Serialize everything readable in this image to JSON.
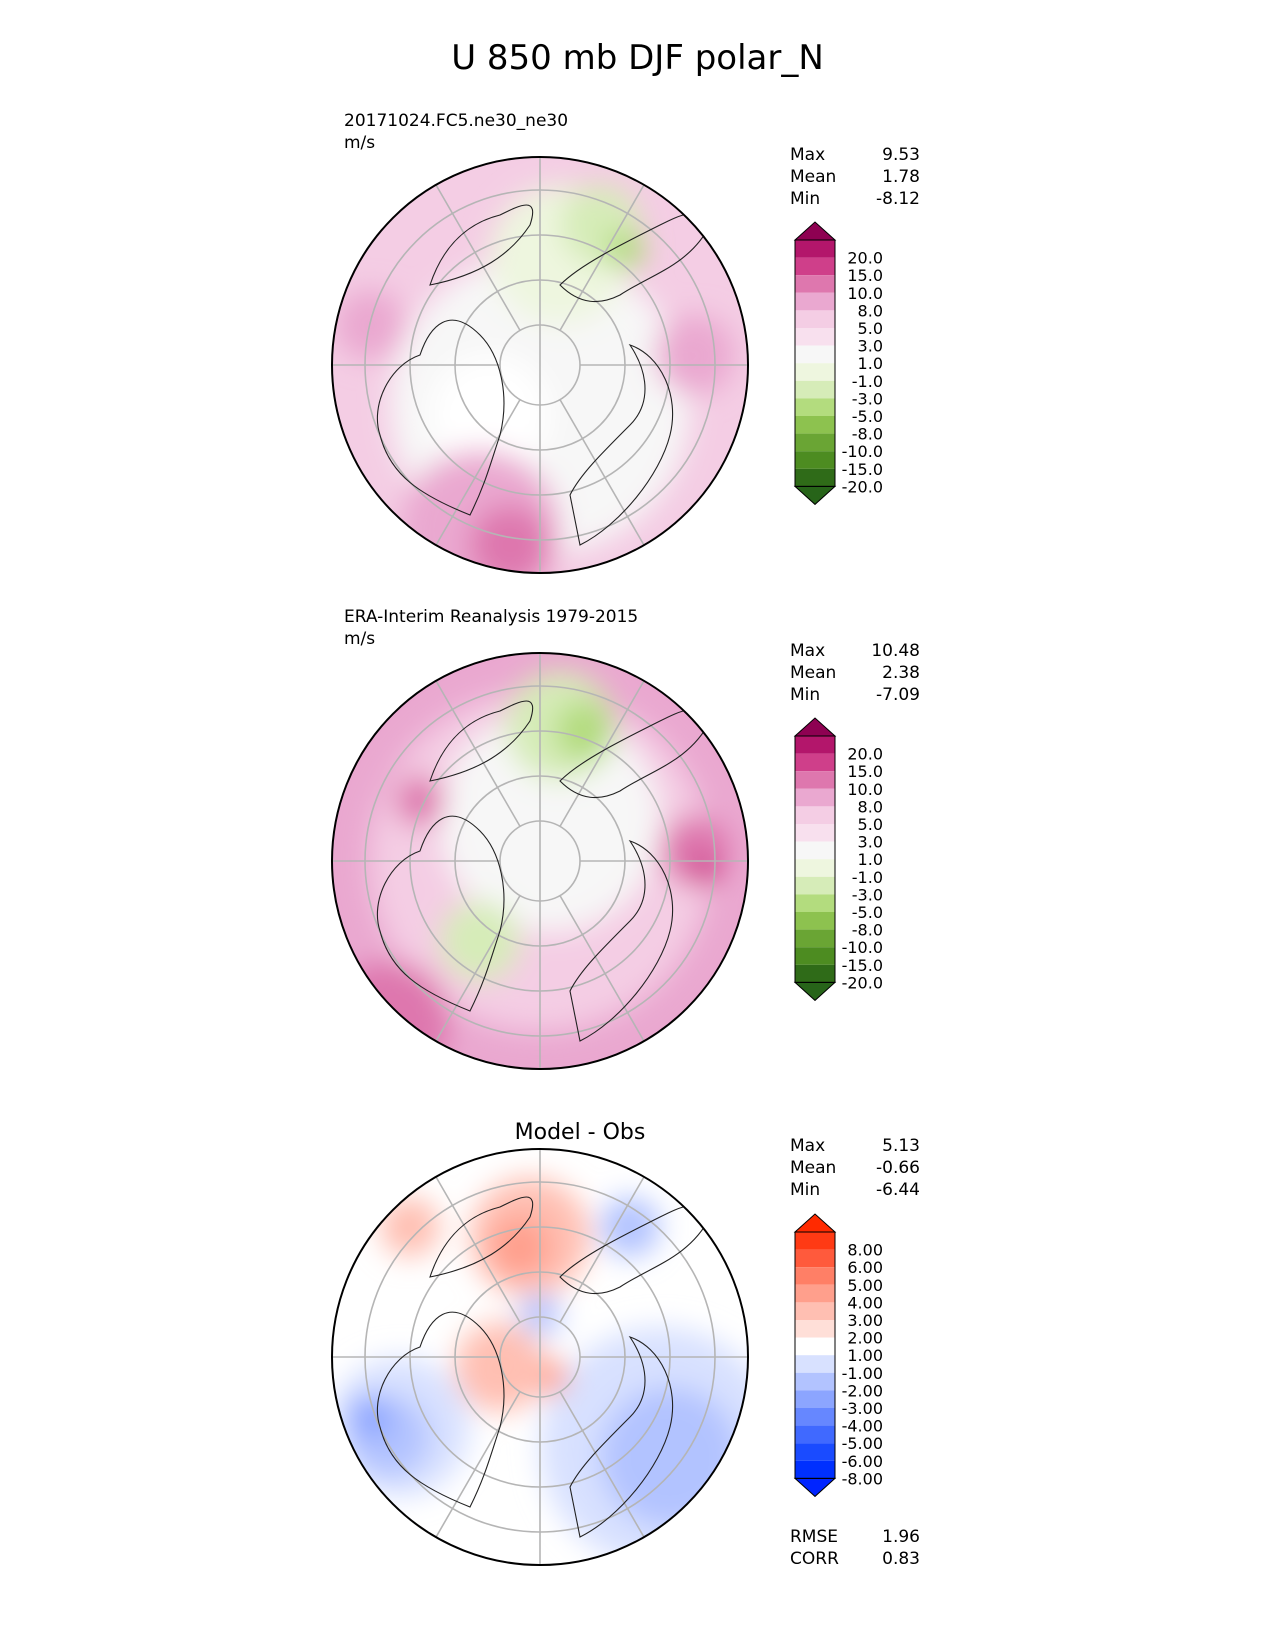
{
  "title": "U 850 mb DJF polar_N",
  "chart_data": [
    {
      "type": "heatmap",
      "projection": "north-polar-stereographic",
      "label_line1": "20171024.FC5.ne30_ne30",
      "label_line2": "m/s",
      "title": "",
      "stats": [
        {
          "label": "Max",
          "value": "9.53"
        },
        {
          "label": "Mean",
          "value": "1.78"
        },
        {
          "label": "Min",
          "value": "-8.12"
        }
      ],
      "colorbar": {
        "ticks": [
          "20.0",
          "15.0",
          "10.0",
          "8.0",
          "5.0",
          "3.0",
          "1.0",
          "-1.0",
          "-3.0",
          "-5.0",
          "-8.0",
          "-10.0",
          "-15.0",
          "-20.0"
        ],
        "colors": [
          "#8e0152",
          "#b3166b",
          "#cf3f8a",
          "#de77ae",
          "#eaa8d0",
          "#f4cde4",
          "#f8e0ee",
          "#f7f7f7",
          "#eef6df",
          "#d6ecb8",
          "#b3dc7e",
          "#8dc24f",
          "#6aa534",
          "#4d8c21",
          "#2f6b18",
          "#276419"
        ]
      }
    },
    {
      "type": "heatmap",
      "projection": "north-polar-stereographic",
      "label_line1": "ERA-Interim Reanalysis 1979-2015",
      "label_line2": "m/s",
      "title": "",
      "stats": [
        {
          "label": "Max",
          "value": "10.48"
        },
        {
          "label": "Mean",
          "value": "2.38"
        },
        {
          "label": "Min",
          "value": "-7.09"
        }
      ],
      "colorbar": {
        "ticks": [
          "20.0",
          "15.0",
          "10.0",
          "8.0",
          "5.0",
          "3.0",
          "1.0",
          "-1.0",
          "-3.0",
          "-5.0",
          "-8.0",
          "-10.0",
          "-15.0",
          "-20.0"
        ],
        "colors": [
          "#8e0152",
          "#b3166b",
          "#cf3f8a",
          "#de77ae",
          "#eaa8d0",
          "#f4cde4",
          "#f8e0ee",
          "#f7f7f7",
          "#eef6df",
          "#d6ecb8",
          "#b3dc7e",
          "#8dc24f",
          "#6aa534",
          "#4d8c21",
          "#2f6b18",
          "#276419"
        ]
      }
    },
    {
      "type": "heatmap",
      "projection": "north-polar-stereographic",
      "label_line1": "",
      "label_line2": "",
      "title": "Model - Obs",
      "stats": [
        {
          "label": "Max",
          "value": "5.13"
        },
        {
          "label": "Mean",
          "value": "-0.66"
        },
        {
          "label": "Min",
          "value": "-6.44"
        }
      ],
      "extra_stats": [
        {
          "label": "RMSE",
          "value": "1.96"
        },
        {
          "label": "CORR",
          "value": "0.83"
        }
      ],
      "colorbar": {
        "ticks": [
          "8.00",
          "6.00",
          "5.00",
          "4.00",
          "3.00",
          "2.00",
          "1.00",
          "-1.00",
          "-2.00",
          "-3.00",
          "-4.00",
          "-5.00",
          "-6.00",
          "-8.00"
        ],
        "colors": [
          "#ff2a00",
          "#ff3a14",
          "#ff5a3c",
          "#ff7f66",
          "#ff9f8c",
          "#ffbfb2",
          "#ffdfd8",
          "#ffffff",
          "#d8e1ff",
          "#b2c3ff",
          "#8ca5ff",
          "#6687ff",
          "#4069ff",
          "#1a4bff",
          "#0030ff",
          "#0024ff"
        ]
      }
    }
  ]
}
